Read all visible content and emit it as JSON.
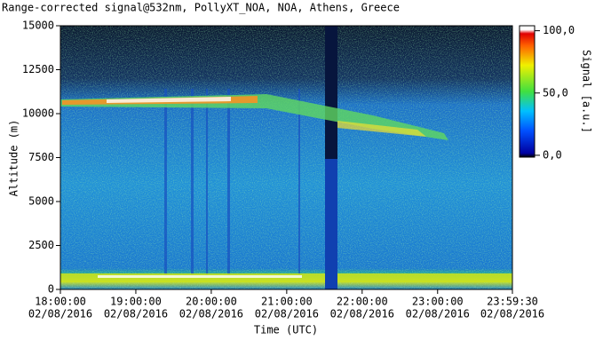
{
  "chart_data": {
    "type": "heatmap",
    "title": "Range-corrected signal@532nm, PollyXT_NOA, NOA, Athens, Greece",
    "xlabel": "Time (UTC)",
    "ylabel": "Altitude (m)",
    "xlim": [
      "18:00:00",
      "23:59:30"
    ],
    "xticks": [
      {
        "time": "18:00:00",
        "date": "02/08/2016"
      },
      {
        "time": "19:00:00",
        "date": "02/08/2016"
      },
      {
        "time": "20:00:00",
        "date": "02/08/2016"
      },
      {
        "time": "21:00:00",
        "date": "02/08/2016"
      },
      {
        "time": "22:00:00",
        "date": "02/08/2016"
      },
      {
        "time": "23:00:00",
        "date": "02/08/2016"
      },
      {
        "time": "23:59:30",
        "date": "02/08/2016"
      }
    ],
    "ylim": [
      0,
      15000
    ],
    "yticks": [
      0,
      2500,
      5000,
      7500,
      10000,
      12500,
      15000
    ],
    "colorbar": {
      "label": "Signal [a.u.]",
      "lim": [
        -1.5,
        104
      ],
      "ticks": [
        {
          "value": 0,
          "label": "0,0"
        },
        {
          "value": 50,
          "label": "50,0"
        },
        {
          "value": 100,
          "label": "100,0"
        }
      ]
    }
  }
}
